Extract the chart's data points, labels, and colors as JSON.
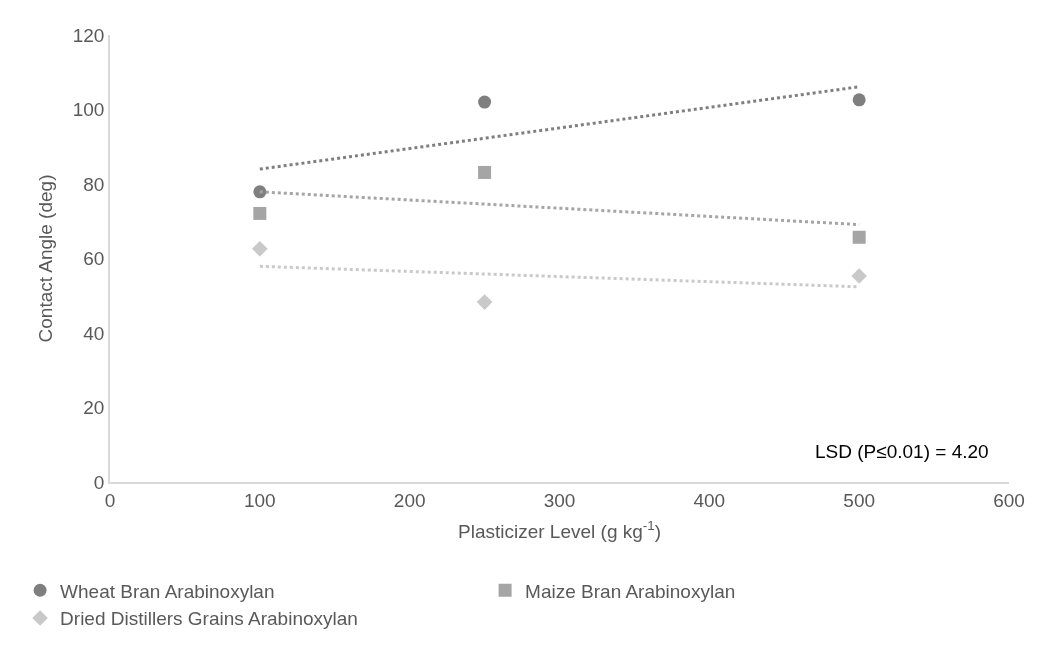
{
  "chart_data": {
    "type": "scatter",
    "xlabel": "Plasticizer Level (g kg$^{-1}$)",
    "ylabel": "Contact Angle (deg)",
    "xlim": [
      0,
      600
    ],
    "xticks": [
      0,
      100,
      200,
      300,
      400,
      500,
      600
    ],
    "ylim": [
      0,
      120
    ],
    "yticks": [
      0,
      20,
      40,
      60,
      80,
      100,
      120
    ],
    "legend": "bottom",
    "series": [
      {
        "name": "Wheat Bran Arabinoxylan",
        "color": "#7f7f7f",
        "marker": "circle",
        "x": [
          100,
          250,
          500
        ],
        "values": [
          77.9,
          102,
          102.6
        ]
      },
      {
        "name": "Maize Bran Arabinoxylan",
        "color": "#a5a5a5",
        "marker": "square",
        "x": [
          100,
          250,
          500
        ],
        "values": [
          72.1,
          83.1,
          65.7
        ]
      },
      {
        "name": "Dried Distillers Grains Arabinoxylan",
        "color": "#c9c9c9",
        "marker": "diamond",
        "x": [
          100,
          250,
          500
        ],
        "values": [
          62.6,
          48.3,
          55.3
        ]
      },
      {
        "type": "line",
        "color": "#7f7f7f",
        "marker": "none",
        "line_style": "dotted",
        "x": [
          100,
          500
        ],
        "values": [
          84,
          106.1
        ]
      },
      {
        "type": "line",
        "color": "#a5a5a5",
        "marker": "none",
        "line_style": "dotted",
        "x": [
          100,
          500
        ],
        "values": [
          77.9,
          69.1
        ]
      },
      {
        "type": "line",
        "color": "#c9c9c9",
        "marker": "none",
        "line_style": "dotted",
        "x": [
          100,
          500
        ],
        "values": [
          57.9,
          52.4
        ]
      }
    ],
    "annotations": [
      "LSD (P≤0.01) = 4.20"
    ]
  }
}
